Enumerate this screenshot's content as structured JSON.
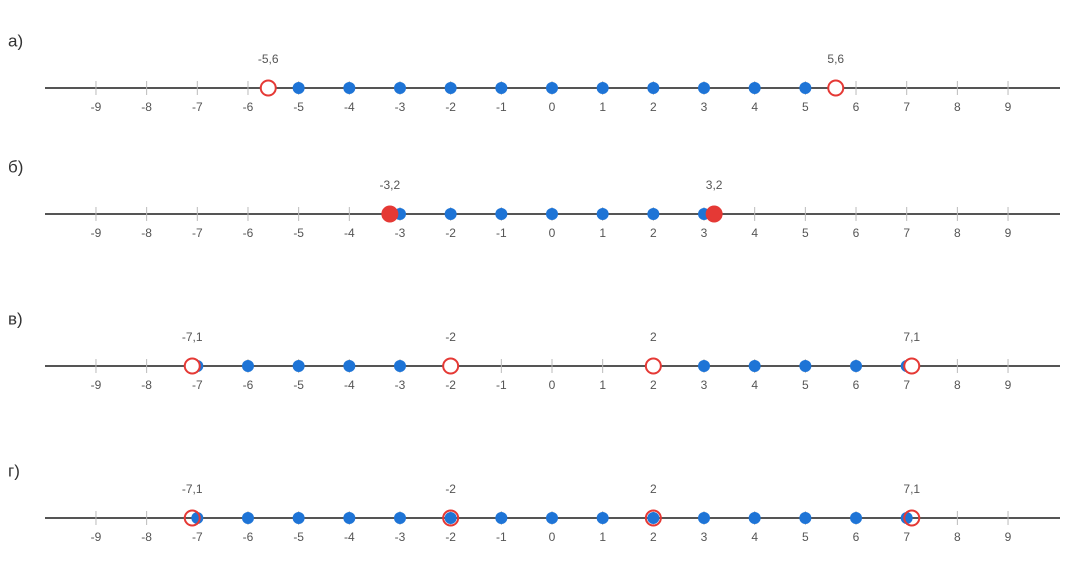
{
  "rows": [
    {
      "label": "а)",
      "ticks": [
        -9,
        -8,
        -7,
        -6,
        -5,
        -4,
        -3,
        -2,
        -1,
        0,
        1,
        2,
        3,
        4,
        5,
        6,
        7,
        8,
        9
      ],
      "points": [
        -5,
        -4,
        -3,
        -2,
        -1,
        0,
        1,
        2,
        3,
        4,
        5
      ],
      "point_color": "#1e74d6",
      "marked": [
        {
          "value": -5.6,
          "label": "-5,6"
        },
        {
          "value": 5.6,
          "label": "5,6"
        }
      ],
      "marked_color": "#e53935",
      "marked_fill": "#ffffff"
    },
    {
      "label": "б)",
      "ticks": [
        -9,
        -8,
        -7,
        -6,
        -5,
        -4,
        -3,
        -2,
        -1,
        0,
        1,
        2,
        3,
        4,
        5,
        6,
        7,
        8,
        9
      ],
      "points": [
        -3,
        -2,
        -1,
        0,
        1,
        2,
        3
      ],
      "point_color": "#1e74d6",
      "marked": [
        {
          "value": -3.2,
          "label": "-3,2"
        },
        {
          "value": 3.2,
          "label": "3,2"
        }
      ],
      "marked_color": "#e53935",
      "marked_fill": "#e53935"
    },
    {
      "label": "в)",
      "ticks": [
        -9,
        -8,
        -7,
        -6,
        -5,
        -4,
        -3,
        -2,
        -1,
        0,
        1,
        2,
        3,
        4,
        5,
        6,
        7,
        8,
        9
      ],
      "points": [
        -7,
        -6,
        -5,
        -4,
        -3,
        3,
        4,
        5,
        6,
        7
      ],
      "point_color": "#1e74d6",
      "marked": [
        {
          "value": -7.1,
          "label": "-7,1"
        },
        {
          "value": -2,
          "label": "-2"
        },
        {
          "value": 2,
          "label": "2"
        },
        {
          "value": 7.1,
          "label": "7,1"
        }
      ],
      "marked_color": "#e53935",
      "marked_fill": "#ffffff"
    },
    {
      "label": "г)",
      "ticks": [
        -9,
        -8,
        -7,
        -6,
        -5,
        -4,
        -3,
        -2,
        -1,
        0,
        1,
        2,
        3,
        4,
        5,
        6,
        7,
        8,
        9
      ],
      "points": [
        -7,
        -6,
        -5,
        -4,
        -3,
        -2,
        -1,
        0,
        1,
        2,
        3,
        4,
        5,
        6,
        7
      ],
      "point_color": "#1e74d6",
      "marked": [
        {
          "value": -7.1,
          "label": "-7,1"
        },
        {
          "value": -2,
          "label": "-2"
        },
        {
          "value": 2,
          "label": "2"
        },
        {
          "value": 7.1,
          "label": "7,1"
        }
      ],
      "marked_color": "#e53935",
      "marked_fill": "none"
    }
  ]
}
